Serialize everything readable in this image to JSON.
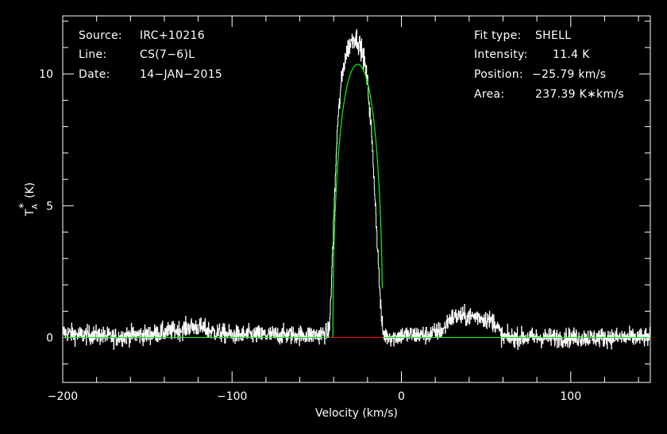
{
  "chart_data": {
    "type": "line",
    "xlabel": "Velocity (km/s)",
    "ylabel": {
      "base": "T",
      "sub": "A",
      "sup": "*",
      "unit": "(K)"
    },
    "xlim": [
      -200,
      147
    ],
    "ylim": [
      -1.7,
      12.2
    ],
    "xticks": [
      -200,
      -100,
      0,
      100
    ],
    "xtick_labels": [
      "−200",
      "−100",
      "0",
      "100"
    ],
    "yticks": [
      0,
      5,
      10
    ],
    "ytick_labels": [
      "0",
      "5",
      "10"
    ],
    "grid": false,
    "colors": {
      "background": "#000000",
      "axes": "#ffffff",
      "spectrum": "#ffffff",
      "fit": "#00ff00",
      "window": "#ff0000"
    },
    "series": [
      {
        "role": "spectrum",
        "x": [
          -200,
          -190,
          -180,
          -170,
          -160,
          -150,
          -140,
          -130,
          -125,
          -120,
          -110,
          -100,
          -90,
          -80,
          -70,
          -60,
          -50,
          -43,
          -42,
          -40,
          -38,
          -36,
          -34,
          -32,
          -30,
          -28,
          -26,
          -24,
          -22,
          -20,
          -18,
          -16,
          -14,
          -12,
          -11,
          -10,
          -5,
          0,
          5,
          10,
          15,
          20,
          25,
          28,
          32,
          36,
          40,
          45,
          50,
          55,
          58,
          60,
          70,
          80,
          90,
          100,
          110,
          120,
          130,
          140,
          147
        ],
        "y": [
          0.2,
          0.1,
          0.1,
          0.0,
          0.1,
          0.1,
          0.2,
          0.3,
          0.4,
          0.4,
          0.2,
          0.1,
          0.1,
          0.1,
          0.1,
          0.1,
          0.1,
          0.2,
          1.0,
          4.5,
          7.8,
          9.4,
          10.4,
          10.9,
          11.2,
          11.4,
          11.3,
          11.0,
          10.5,
          9.6,
          8.0,
          5.8,
          3.2,
          0.8,
          0.2,
          0.1,
          0.0,
          0.1,
          0.1,
          0.1,
          0.1,
          0.2,
          0.3,
          0.7,
          0.8,
          0.8,
          0.8,
          0.8,
          0.7,
          0.6,
          0.2,
          0.0,
          0.0,
          0.0,
          0.0,
          0.0,
          0.0,
          0.0,
          0.0,
          0.0,
          0.0
        ],
        "noise_rms": 0.25
      },
      {
        "role": "fit",
        "type": "SHELL",
        "position": -25.79,
        "peak": 11.4,
        "half_width": 14.7,
        "horn": 0.1
      }
    ],
    "baseline_window": [
      -43,
      -11
    ],
    "annotations_left": [
      {
        "key": "Source:",
        "value": "IRC+10216"
      },
      {
        "key": "Line:",
        "value": "CS(7−6)L"
      },
      {
        "key": "Date:",
        "value": "14−JAN−2015"
      }
    ],
    "annotations_right": [
      {
        "key": "Fit type:",
        "value": "SHELL"
      },
      {
        "key": "Intensity:",
        "value": "11.4 K"
      },
      {
        "key": "Position:",
        "value": "−25.79 km/s"
      },
      {
        "key": "Area:",
        "value": "237.39 K∗km/s"
      }
    ]
  }
}
